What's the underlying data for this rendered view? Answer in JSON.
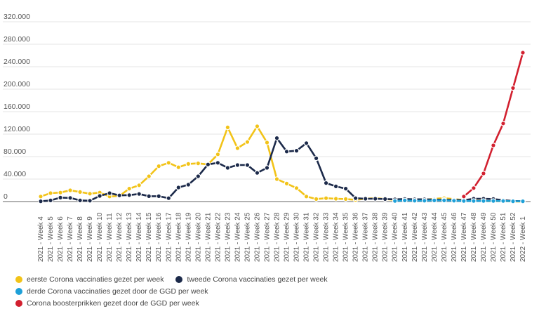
{
  "chart_data": {
    "type": "line",
    "title": "",
    "xlabel": "",
    "ylabel": "",
    "ylim": [
      0,
      320000
    ],
    "yticks": [
      "0",
      "40.000",
      "80.000",
      "120.000",
      "160.000",
      "200.000",
      "240.000",
      "280.000",
      "320.000"
    ],
    "ytick_values": [
      0,
      40000,
      80000,
      120000,
      160000,
      200000,
      240000,
      280000,
      320000
    ],
    "grid": true,
    "legend_position": "bottom",
    "categories": [
      "2021 - Week 4",
      "2021 - Week 5",
      "2021 - Week 6",
      "2021 - Week 7",
      "2021 - Week 8",
      "2021 - Week 9",
      "2021 - Week 10",
      "2021 - Week 11",
      "2021 - Week 12",
      "2021 - Week 13",
      "2021 - Week 14",
      "2021 - Week 15",
      "2021 - Week 16",
      "2021 - Week 17",
      "2021 - Week 18",
      "2021 - Week 19",
      "2021 - Week 20",
      "2021 - Week 21",
      "2021 - Week 22",
      "2021 - Week 23",
      "2021 - Week 24",
      "2021 - Week 25",
      "2021 - Week 26",
      "2021 - Week 27",
      "2021 - Week 28",
      "2021 - Week 29",
      "2021 - Week 30",
      "2021 - Week 31",
      "2021 - Week 32",
      "2021 - Week 33",
      "2021 - Week 34",
      "2021 - Week 35",
      "2021 - Week 36",
      "2021 - Week 37",
      "2021 - Week 38",
      "2021 - Week 39",
      "2021 - Week 40",
      "2021 - Week 41",
      "2021 - Week 42",
      "2021 - Week 43",
      "2021 - Week 44",
      "2021 - Week 45",
      "2021 - Week 46",
      "2021 - Week 47",
      "2021 - Week 48",
      "2021 - Week 49",
      "2021 - Week 50",
      "2021 - Week 51",
      "2021 - Week 52",
      "2022 - Week 1"
    ],
    "series": [
      {
        "name": "eerste Corona vaccinaties gezet per week",
        "color": "#f2c318",
        "values": [
          9000,
          15000,
          16000,
          20000,
          17000,
          14000,
          16000,
          9000,
          10000,
          23000,
          29000,
          45000,
          63000,
          69000,
          61000,
          67000,
          68000,
          66000,
          84000,
          132000,
          95000,
          106000,
          134000,
          105000,
          40000,
          32000,
          24000,
          9000,
          4500,
          6000,
          5000,
          4500,
          3000,
          5000,
          6000,
          4500,
          3000,
          2000,
          2000,
          3000,
          5000,
          6000,
          4500,
          2500,
          1500,
          1000,
          500,
          1000,
          0,
          0
        ]
      },
      {
        "name": "tweede Corona vaccinaties gezet per week",
        "color": "#1c2a4a",
        "values": [
          500,
          2000,
          7000,
          6500,
          2000,
          1500,
          10000,
          15000,
          11000,
          11500,
          13500,
          9500,
          9500,
          6000,
          25000,
          30000,
          45000,
          66000,
          69000,
          60000,
          65000,
          65000,
          51000,
          60000,
          113000,
          89000,
          90500,
          104000,
          77000,
          33000,
          27000,
          23000,
          6000,
          5000,
          5000,
          4500,
          4000,
          4500,
          4000,
          4000,
          3500,
          3000,
          3000,
          2500,
          5000,
          5000,
          4500,
          2500,
          1000,
          500
        ]
      },
      {
        "name": "derde Corona vaccinaties gezet door de GGD per week",
        "color": "#1ea0d8",
        "values": [
          null,
          null,
          null,
          null,
          null,
          null,
          null,
          null,
          null,
          null,
          null,
          null,
          null,
          null,
          null,
          null,
          null,
          null,
          null,
          null,
          null,
          null,
          null,
          null,
          null,
          null,
          null,
          null,
          null,
          null,
          null,
          null,
          null,
          null,
          null,
          null,
          1000,
          2000,
          1500,
          1500,
          2000,
          2000,
          1500,
          1000,
          1000,
          1000,
          1000,
          1000,
          500,
          500
        ]
      },
      {
        "name": "Corona boosterprikken gezet door de GGD per week",
        "color": "#d2202f",
        "values": [
          null,
          null,
          null,
          null,
          null,
          null,
          null,
          null,
          null,
          null,
          null,
          null,
          null,
          null,
          null,
          null,
          null,
          null,
          null,
          null,
          null,
          null,
          null,
          null,
          null,
          null,
          null,
          null,
          null,
          null,
          null,
          null,
          null,
          null,
          null,
          null,
          null,
          null,
          null,
          null,
          null,
          null,
          null,
          9000,
          24000,
          50000,
          100000,
          139000,
          202000,
          265000
        ]
      }
    ]
  }
}
